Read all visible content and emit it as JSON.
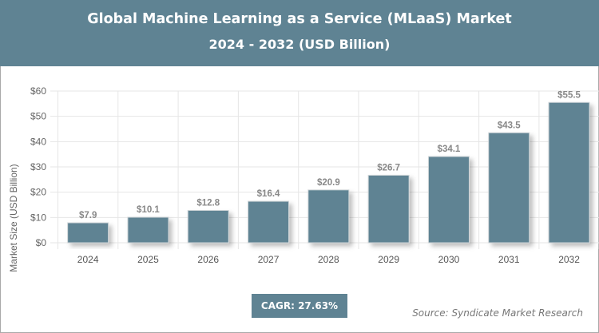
{
  "header": {
    "title": "Global Machine Learning as a Service (MLaaS) Market",
    "subtitle": "2024 - 2032 (USD Billion)"
  },
  "chart_data": {
    "type": "bar",
    "title": "Global Machine Learning as a Service (MLaaS) Market",
    "subtitle": "2024 - 2032 (USD Billion)",
    "categories": [
      "2024",
      "2025",
      "2026",
      "2027",
      "2028",
      "2029",
      "2030",
      "2031",
      "2032"
    ],
    "values": [
      7.9,
      10.1,
      12.8,
      16.4,
      20.9,
      26.7,
      34.1,
      43.5,
      55.5
    ],
    "data_labels": [
      "$7.9",
      "$10.1",
      "$12.8",
      "$16.4",
      "$20.9",
      "$26.7",
      "$34.1",
      "$43.5",
      "$55.5"
    ],
    "xlabel": "",
    "ylabel": "Market Size (USD Billion)",
    "ylim": [
      0,
      60
    ],
    "yticks": [
      "$0",
      "$10",
      "$20",
      "$30",
      "$40",
      "$50",
      "$60"
    ],
    "grid": true,
    "bar_color": "#5f8393"
  },
  "footer": {
    "cagr": "CAGR: 27.63%",
    "source": "Source: Syndicate Market Research"
  }
}
